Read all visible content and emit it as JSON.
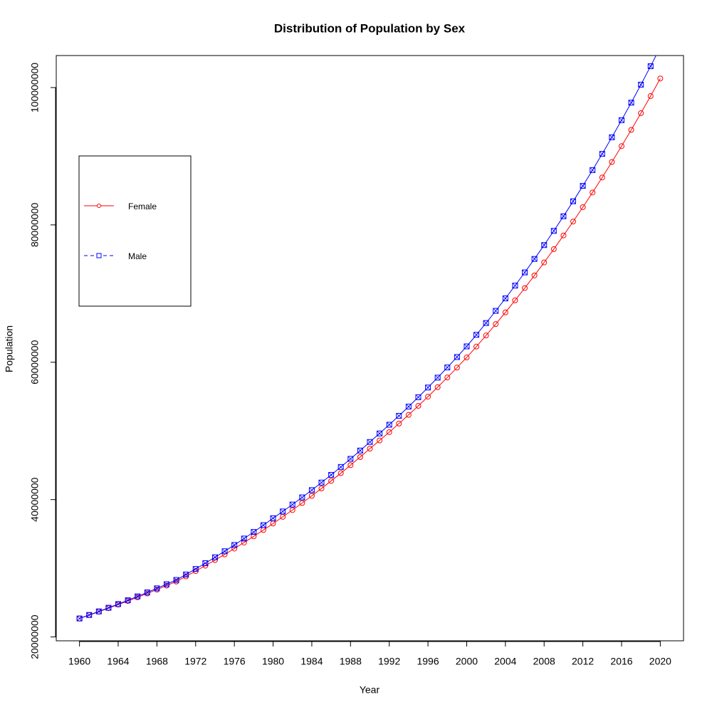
{
  "chart_data": {
    "type": "line",
    "title": "Distribution of Population by Sex",
    "x_label": "Year",
    "y_label": "Population",
    "x": [
      1960,
      1961,
      1962,
      1963,
      1964,
      1965,
      1966,
      1967,
      1968,
      1969,
      1970,
      1971,
      1972,
      1973,
      1974,
      1975,
      1976,
      1977,
      1978,
      1979,
      1980,
      1981,
      1982,
      1983,
      1984,
      1985,
      1986,
      1987,
      1988,
      1989,
      1990,
      1991,
      1992,
      1993,
      1994,
      1995,
      1996,
      1997,
      1998,
      1999,
      2000,
      2001,
      2002,
      2003,
      2004,
      2005,
      2006,
      2007,
      2008,
      2009,
      2010,
      2011,
      2012,
      2013,
      2014,
      2015,
      2016,
      2017,
      2018,
      2019,
      2020
    ],
    "series": [
      {
        "name": "Female",
        "color": "#ff0000",
        "marker": "circle",
        "legend_line_style": "solid",
        "values": [
          22690000,
          23180000,
          23680000,
          24190000,
          24710000,
          25240000,
          25780000,
          26330000,
          26900000,
          27480000,
          28070000,
          28820000,
          29590000,
          30380000,
          31190000,
          32020000,
          32870000,
          33750000,
          34650000,
          35570000,
          36520000,
          37490000,
          38480000,
          39500000,
          40550000,
          41620000,
          42720000,
          43850000,
          45010000,
          46200000,
          47420000,
          48610000,
          49820000,
          51070000,
          52340000,
          53650000,
          54990000,
          56370000,
          57780000,
          59220000,
          60700000,
          62280000,
          63900000,
          65560000,
          67260000,
          69010000,
          70800000,
          72640000,
          74530000,
          76470000,
          78460000,
          80490000,
          82580000,
          84720000,
          86910000,
          89160000,
          91470000,
          93840000,
          96270000,
          98760000,
          101320000
        ]
      },
      {
        "name": "Male",
        "color": "#0000ff",
        "marker": "square",
        "legend_line_style": "dashed",
        "values": [
          22690000,
          23200000,
          23720000,
          24250000,
          24790000,
          25340000,
          25910000,
          26490000,
          27080000,
          27680000,
          28300000,
          29090000,
          29900000,
          30740000,
          31600000,
          32480000,
          33390000,
          34330000,
          35290000,
          36280000,
          37290000,
          38270000,
          39280000,
          40320000,
          41380000,
          42480000,
          43600000,
          44750000,
          45930000,
          47140000,
          48390000,
          49630000,
          50900000,
          52200000,
          53540000,
          54910000,
          56320000,
          57760000,
          59240000,
          60760000,
          62310000,
          63990000,
          65710000,
          67480000,
          69300000,
          71160000,
          73080000,
          75040000,
          77060000,
          79130000,
          81260000,
          83440000,
          85680000,
          87980000,
          90340000,
          92760000,
          95250000,
          97800000,
          100420000,
          103110000,
          105870000
        ]
      }
    ],
    "xlim": [
      1957.6,
      2022.4
    ],
    "xticks": [
      1960,
      1964,
      1968,
      1972,
      1976,
      1980,
      1984,
      1988,
      1992,
      1996,
      2000,
      2004,
      2008,
      2012,
      2016,
      2020
    ],
    "ylim": [
      19440000,
      104660000
    ],
    "yticks": [
      20000000,
      40000000,
      60000000,
      80000000,
      100000000
    ],
    "grid": false,
    "legend_position": "top-left"
  }
}
